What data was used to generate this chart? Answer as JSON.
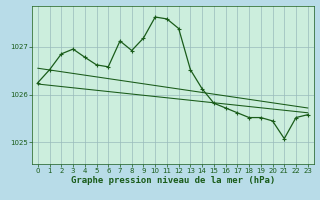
{
  "title": "Graphe pression niveau de la mer (hPa)",
  "bg_color": "#b8dce8",
  "plot_bg_color": "#cceedd",
  "line_color": "#1a5c1a",
  "grid_color": "#99bbbb",
  "x_ticks": [
    0,
    1,
    2,
    3,
    4,
    5,
    6,
    7,
    8,
    9,
    10,
    11,
    12,
    13,
    14,
    15,
    16,
    17,
    18,
    19,
    20,
    21,
    22,
    23
  ],
  "y_ticks": [
    1025,
    1026,
    1027
  ],
  "ylim": [
    1024.55,
    1027.85
  ],
  "xlim": [
    -0.5,
    23.5
  ],
  "main_line": [
    [
      0,
      1026.25
    ],
    [
      1,
      1026.52
    ],
    [
      2,
      1026.85
    ],
    [
      3,
      1026.95
    ],
    [
      4,
      1026.78
    ],
    [
      5,
      1026.62
    ],
    [
      6,
      1026.58
    ],
    [
      7,
      1027.12
    ],
    [
      8,
      1026.92
    ],
    [
      9,
      1027.18
    ],
    [
      10,
      1027.62
    ],
    [
      11,
      1027.58
    ],
    [
      12,
      1027.38
    ],
    [
      13,
      1026.52
    ],
    [
      14,
      1026.12
    ],
    [
      15,
      1025.82
    ],
    [
      16,
      1025.72
    ],
    [
      17,
      1025.62
    ],
    [
      18,
      1025.52
    ],
    [
      19,
      1025.52
    ],
    [
      20,
      1025.45
    ],
    [
      21,
      1025.08
    ],
    [
      22,
      1025.52
    ],
    [
      23,
      1025.58
    ]
  ],
  "upper_line": [
    [
      0,
      1026.55
    ],
    [
      23,
      1025.72
    ]
  ],
  "lower_line": [
    [
      0,
      1026.22
    ],
    [
      23,
      1025.62
    ]
  ],
  "marker_size": 2.8,
  "line_width": 0.9,
  "title_fontsize": 6.5,
  "tick_fontsize": 5.0,
  "title_color": "#1a5c1a"
}
